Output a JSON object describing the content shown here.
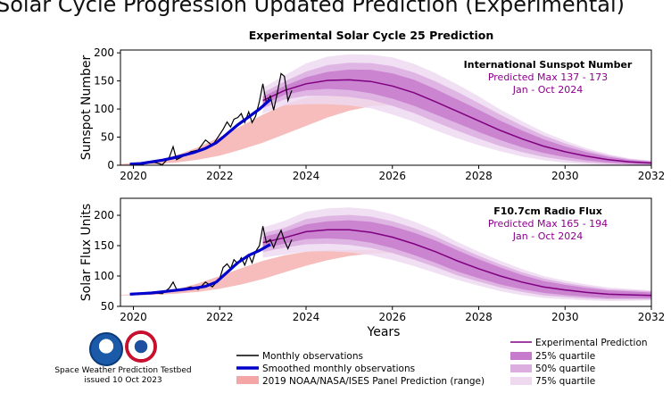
{
  "page_title": "Solar Cycle Progression Updated Prediction (Experimental)",
  "footer": {
    "line1": "Space Weather Prediction Testbed",
    "line2": "issued 10 Oct 2023"
  },
  "colors": {
    "monthly": "#000000",
    "smoothed": "#0000cc",
    "panel_range": "#f4a6a6",
    "experimental": "#800080",
    "q25": "#c77bcc",
    "q50": "#dcaee0",
    "q75": "#efd9f1"
  },
  "legend": {
    "monthly": "Monthly observations",
    "smoothed": "Smoothed monthly observations",
    "panel": "2019 NOAA/NASA/ISES Panel Prediction (range)",
    "experimental": "Experimental Prediction",
    "q25": "25% quartile",
    "q50": "50% quartile",
    "q75": "75% quartile"
  },
  "chart_data": [
    {
      "type": "line",
      "title": "Experimental Solar Cycle 25 Prediction",
      "ylabel": "Sunspot Number",
      "xlabel": "",
      "xlim": [
        2019.7,
        2032
      ],
      "ylim": [
        0,
        205
      ],
      "xticks": [
        "2020",
        "2022",
        "2024",
        "2026",
        "2028",
        "2030",
        "2032"
      ],
      "yticks": [
        "0",
        "50",
        "100",
        "150",
        "200"
      ],
      "annotation": {
        "title": "International Sunspot Number",
        "line1": "Predicted Max 137 - 173",
        "line2": "Jan - Oct 2024"
      },
      "monthly": {
        "x": [
          2019.92,
          2020.0,
          2020.17,
          2020.33,
          2020.5,
          2020.67,
          2020.83,
          2020.92,
          2021.0,
          2021.17,
          2021.33,
          2021.5,
          2021.67,
          2021.83,
          2022.0,
          2022.08,
          2022.17,
          2022.25,
          2022.33,
          2022.42,
          2022.5,
          2022.58,
          2022.67,
          2022.75,
          2022.83,
          2022.92,
          2023.0,
          2023.08,
          2023.17,
          2023.25,
          2023.33,
          2023.42,
          2023.5,
          2023.58,
          2023.67
        ],
        "y": [
          1,
          2,
          1,
          4,
          5,
          1,
          14,
          33,
          10,
          17,
          24,
          27,
          45,
          35,
          55,
          64,
          77,
          68,
          82,
          85,
          92,
          76,
          95,
          76,
          87,
          114,
          145,
          111,
          123,
          98,
          127,
          163,
          158,
          115,
          133
        ]
      },
      "smoothed": {
        "x": [
          2019.92,
          2020.17,
          2020.42,
          2020.67,
          2020.92,
          2021.17,
          2021.42,
          2021.67,
          2021.92,
          2022.17,
          2022.42,
          2022.67,
          2022.92,
          2023.17
        ],
        "y": [
          2,
          3,
          6,
          9,
          13,
          18,
          23,
          30,
          40,
          56,
          72,
          86,
          100,
          117
        ]
      },
      "experimental": {
        "x": [
          2023.0,
          2023.5,
          2024.0,
          2024.5,
          2025.0,
          2025.5,
          2026.0,
          2026.5,
          2027.0,
          2027.5,
          2028.0,
          2028.5,
          2029.0,
          2029.5,
          2030.0,
          2030.5,
          2031.0,
          2031.5,
          2032.0
        ],
        "y": [
          115,
          133,
          145,
          151,
          152,
          149,
          141,
          129,
          113,
          96,
          79,
          62,
          47,
          34,
          24,
          16,
          10,
          6,
          4
        ]
      },
      "q25_spread": [
        0.06,
        0.06,
        0.08,
        0.1,
        0.12,
        0.14,
        0.16,
        0.18,
        0.2,
        0.22,
        0.25,
        0.28,
        0.32,
        0.36,
        0.4,
        0.45,
        0.5,
        0.55,
        0.6
      ],
      "q50_spread": [
        0.12,
        0.12,
        0.15,
        0.18,
        0.2,
        0.22,
        0.25,
        0.28,
        0.32,
        0.36,
        0.4,
        0.45,
        0.5,
        0.56,
        0.62,
        0.68,
        0.75,
        0.8,
        0.85
      ],
      "q75_spread": [
        0.2,
        0.2,
        0.25,
        0.28,
        0.3,
        0.32,
        0.36,
        0.4,
        0.45,
        0.5,
        0.55,
        0.6,
        0.67,
        0.74,
        0.82,
        0.9,
        0.98,
        1.0,
        1.05
      ],
      "panel": {
        "x": [
          2019.7,
          2020.5,
          2021.0,
          2021.5,
          2022.0,
          2022.5,
          2023.0,
          2023.5,
          2024.0,
          2024.5,
          2025.0,
          2025.5,
          2026.0,
          2026.5,
          2027.0,
          2027.5,
          2028.0,
          2028.5,
          2029.0,
          2029.5,
          2030.0,
          2030.5,
          2031.0,
          2031.5,
          2032.0
        ],
        "lower": [
          0,
          2,
          5,
          10,
          17,
          28,
          40,
          55,
          70,
          85,
          97,
          105,
          107,
          103,
          93,
          80,
          66,
          52,
          39,
          28,
          19,
          13,
          8,
          5,
          3
        ],
        "upper": [
          2,
          8,
          18,
          32,
          50,
          70,
          90,
          108,
          120,
          125,
          125,
          122,
          116,
          107,
          95,
          82,
          68,
          54,
          41,
          30,
          21,
          14,
          9,
          6,
          4
        ]
      }
    },
    {
      "type": "line",
      "title": "",
      "ylabel": "Solar Flux Units",
      "xlabel": "Years",
      "xlim": [
        2019.7,
        2032
      ],
      "ylim": [
        50,
        228
      ],
      "xticks": [
        "2020",
        "2022",
        "2024",
        "2026",
        "2028",
        "2030",
        "2032"
      ],
      "yticks": [
        "50",
        "100",
        "150",
        "200"
      ],
      "annotation": {
        "title": "F10.7cm Radio Flux",
        "line1": "Predicted Max 165 - 194",
        "line2": "Jan - Oct 2024"
      },
      "monthly": {
        "x": [
          2019.92,
          2020.0,
          2020.17,
          2020.33,
          2020.5,
          2020.67,
          2020.83,
          2020.92,
          2021.0,
          2021.17,
          2021.33,
          2021.5,
          2021.67,
          2021.83,
          2022.0,
          2022.08,
          2022.17,
          2022.25,
          2022.33,
          2022.42,
          2022.5,
          2022.58,
          2022.67,
          2022.75,
          2022.83,
          2022.92,
          2023.0,
          2023.08,
          2023.17,
          2023.25,
          2023.33,
          2023.42,
          2023.5,
          2023.58,
          2023.67
        ],
        "y": [
          70,
          71,
          70,
          71,
          72,
          71,
          80,
          90,
          78,
          79,
          82,
          78,
          90,
          82,
          96,
          114,
          120,
          112,
          127,
          120,
          130,
          118,
          135,
          122,
          140,
          150,
          182,
          155,
          160,
          147,
          162,
          175,
          158,
          145,
          160
        ]
      },
      "smoothed": {
        "x": [
          2019.92,
          2020.17,
          2020.42,
          2020.67,
          2020.92,
          2021.17,
          2021.42,
          2021.67,
          2021.92,
          2022.17,
          2022.42,
          2022.67,
          2022.92,
          2023.17
        ],
        "y": [
          70,
          71,
          72,
          74,
          76,
          78,
          80,
          83,
          90,
          106,
          122,
          134,
          142,
          152
        ]
      },
      "experimental": {
        "x": [
          2023.0,
          2023.5,
          2024.0,
          2024.5,
          2025.0,
          2025.5,
          2026.0,
          2026.5,
          2027.0,
          2027.5,
          2028.0,
          2028.5,
          2029.0,
          2029.5,
          2030.0,
          2030.5,
          2031.0,
          2031.5,
          2032.0
        ],
        "y": [
          155,
          163,
          173,
          176,
          176,
          172,
          164,
          153,
          140,
          125,
          112,
          100,
          90,
          82,
          77,
          73,
          70,
          69,
          68
        ]
      },
      "q25_spread": [
        0.06,
        0.06,
        0.07,
        0.08,
        0.09,
        0.1,
        0.11,
        0.12,
        0.13,
        0.14,
        0.14,
        0.14,
        0.13,
        0.12,
        0.11,
        0.1,
        0.09,
        0.08,
        0.07
      ],
      "q50_spread": [
        0.1,
        0.1,
        0.12,
        0.13,
        0.14,
        0.15,
        0.16,
        0.17,
        0.18,
        0.19,
        0.19,
        0.19,
        0.18,
        0.17,
        0.15,
        0.14,
        0.12,
        0.11,
        0.1
      ],
      "q75_spread": [
        0.16,
        0.17,
        0.19,
        0.2,
        0.21,
        0.22,
        0.23,
        0.24,
        0.25,
        0.25,
        0.25,
        0.25,
        0.24,
        0.22,
        0.2,
        0.18,
        0.16,
        0.14,
        0.12
      ],
      "panel": {
        "x": [
          2019.7,
          2020.5,
          2021.0,
          2021.5,
          2022.0,
          2022.5,
          2023.0,
          2023.5,
          2024.0,
          2024.5,
          2025.0,
          2025.5,
          2026.0,
          2026.5,
          2027.0,
          2027.5,
          2028.0,
          2028.5,
          2029.0,
          2029.5,
          2030.0,
          2030.5,
          2031.0,
          2031.5,
          2032.0
        ],
        "lower": [
          68,
          69,
          71,
          74,
          79,
          86,
          95,
          106,
          117,
          126,
          133,
          137,
          138,
          135,
          128,
          118,
          107,
          97,
          88,
          81,
          76,
          72,
          70,
          68,
          67
        ],
        "upper": [
          69,
          72,
          78,
          88,
          100,
          113,
          125,
          134,
          140,
          142,
          143,
          143,
          141,
          136,
          128,
          118,
          107,
          97,
          88,
          81,
          76,
          72,
          70,
          68,
          67
        ]
      }
    }
  ]
}
